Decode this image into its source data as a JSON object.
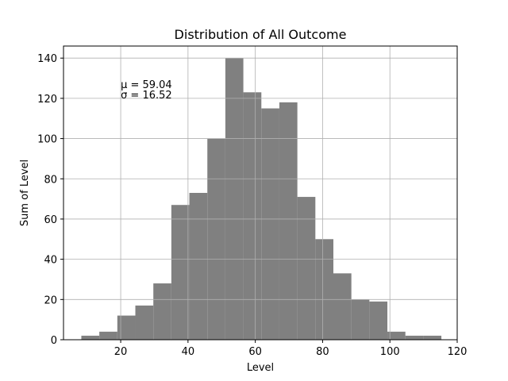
{
  "chart_data": {
    "type": "bar",
    "title": "Distribution of All Outcome",
    "xlabel": "Level",
    "ylabel": "Sum of Level",
    "xlim": [
      3,
      120
    ],
    "ylim": [
      0,
      146
    ],
    "x_ticks": [
      20,
      40,
      60,
      80,
      100,
      120
    ],
    "y_ticks": [
      0,
      20,
      40,
      60,
      80,
      100,
      120,
      140
    ],
    "grid": true,
    "bar_color": "#808080",
    "bins": [
      {
        "start": 8.3,
        "end": 13.65,
        "value": 2
      },
      {
        "start": 13.65,
        "end": 19.0,
        "value": 4
      },
      {
        "start": 19.0,
        "end": 24.35,
        "value": 12
      },
      {
        "start": 24.35,
        "end": 29.7,
        "value": 17
      },
      {
        "start": 29.7,
        "end": 35.05,
        "value": 28
      },
      {
        "start": 35.05,
        "end": 40.4,
        "value": 67
      },
      {
        "start": 40.4,
        "end": 45.75,
        "value": 73
      },
      {
        "start": 45.75,
        "end": 51.1,
        "value": 100
      },
      {
        "start": 51.1,
        "end": 56.45,
        "value": 140
      },
      {
        "start": 56.45,
        "end": 61.8,
        "value": 123
      },
      {
        "start": 61.8,
        "end": 67.15,
        "value": 115
      },
      {
        "start": 67.15,
        "end": 72.5,
        "value": 118
      },
      {
        "start": 72.5,
        "end": 77.85,
        "value": 71
      },
      {
        "start": 77.85,
        "end": 83.2,
        "value": 50
      },
      {
        "start": 83.2,
        "end": 88.55,
        "value": 33
      },
      {
        "start": 88.55,
        "end": 93.9,
        "value": 20
      },
      {
        "start": 93.9,
        "end": 99.25,
        "value": 19
      },
      {
        "start": 99.25,
        "end": 104.6,
        "value": 4
      },
      {
        "start": 104.6,
        "end": 109.95,
        "value": 2
      },
      {
        "start": 109.95,
        "end": 115.3,
        "value": 2
      }
    ],
    "annotations": [
      {
        "text": "μ = 59.04",
        "x": 20,
        "y": 125
      },
      {
        "text": "σ = 16.52",
        "x": 20,
        "y": 120
      }
    ]
  }
}
